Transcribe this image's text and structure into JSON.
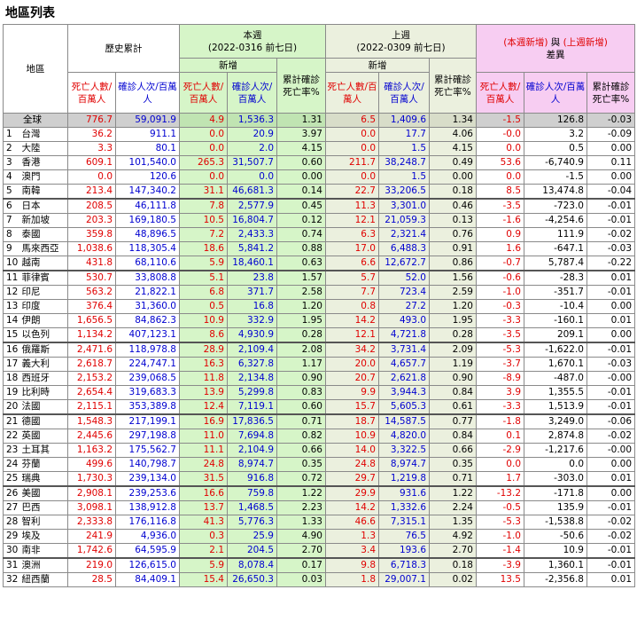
{
  "title": "地區列表",
  "headers": {
    "region": "地區",
    "history": "歷史累計",
    "this_week": "本週",
    "this_week_range": "(2022-0316 前七日)",
    "last_week": "上週",
    "last_week_range": "(2022-0309 前七日)",
    "diff_part1": "(本週新增)",
    "diff_part2": " 與 ",
    "diff_part3": "(上週新增)",
    "diff_title": "差異",
    "new": "新增",
    "deaths": "死亡人數/百萬人",
    "cases": "確診人次/百萬人",
    "cfr": "累計確診死亡率%"
  },
  "global": {
    "name": "全球",
    "v": [
      "776.7",
      "59,091.9",
      "4.9",
      "1,536.3",
      "1.31",
      "6.5",
      "1,409.6",
      "1.34",
      "-1.5",
      "126.8",
      "-0.03"
    ]
  },
  "rows": [
    {
      "rank": "1",
      "name": "台灣",
      "v": [
        "36.2",
        "911.1",
        "0.0",
        "20.9",
        "3.97",
        "0.0",
        "17.7",
        "4.06",
        "-0.0",
        "3.2",
        "-0.09"
      ]
    },
    {
      "rank": "2",
      "name": "大陸",
      "v": [
        "3.3",
        "80.1",
        "0.0",
        "2.0",
        "4.15",
        "0.0",
        "1.5",
        "4.15",
        "0.0",
        "0.5",
        "0.00"
      ]
    },
    {
      "rank": "3",
      "name": "香港",
      "v": [
        "609.1",
        "101,540.0",
        "265.3",
        "31,507.7",
        "0.60",
        "211.7",
        "38,248.7",
        "0.49",
        "53.6",
        "-6,740.9",
        "0.11"
      ]
    },
    {
      "rank": "4",
      "name": "澳門",
      "v": [
        "0.0",
        "120.6",
        "0.0",
        "0.0",
        "0.00",
        "0.0",
        "1.5",
        "0.00",
        "0.0",
        "-1.5",
        "0.00"
      ]
    },
    {
      "rank": "5",
      "name": "南韓",
      "v": [
        "213.4",
        "147,340.2",
        "31.1",
        "46,681.3",
        "0.14",
        "22.7",
        "33,206.5",
        "0.18",
        "8.5",
        "13,474.8",
        "-0.04"
      ]
    },
    {
      "rank": "6",
      "name": "日本",
      "v": [
        "208.5",
        "46,111.8",
        "7.8",
        "2,577.9",
        "0.45",
        "11.3",
        "3,301.0",
        "0.46",
        "-3.5",
        "-723.0",
        "-0.01"
      ]
    },
    {
      "rank": "7",
      "name": "新加坡",
      "v": [
        "203.3",
        "169,180.5",
        "10.5",
        "16,804.7",
        "0.12",
        "12.1",
        "21,059.3",
        "0.13",
        "-1.6",
        "-4,254.6",
        "-0.01"
      ]
    },
    {
      "rank": "8",
      "name": "泰國",
      "v": [
        "359.8",
        "48,896.5",
        "7.2",
        "2,433.3",
        "0.74",
        "6.3",
        "2,321.4",
        "0.76",
        "0.9",
        "111.9",
        "-0.02"
      ]
    },
    {
      "rank": "9",
      "name": "馬來西亞",
      "v": [
        "1,038.6",
        "118,305.4",
        "18.6",
        "5,841.2",
        "0.88",
        "17.0",
        "6,488.3",
        "0.91",
        "1.6",
        "-647.1",
        "-0.03"
      ]
    },
    {
      "rank": "10",
      "name": "越南",
      "v": [
        "431.8",
        "68,110.6",
        "5.9",
        "18,460.1",
        "0.63",
        "6.6",
        "12,672.7",
        "0.86",
        "-0.7",
        "5,787.4",
        "-0.22"
      ]
    },
    {
      "rank": "11",
      "name": "菲律賓",
      "v": [
        "530.7",
        "33,808.8",
        "5.1",
        "23.8",
        "1.57",
        "5.7",
        "52.0",
        "1.56",
        "-0.6",
        "-28.3",
        "0.01"
      ]
    },
    {
      "rank": "12",
      "name": "印尼",
      "v": [
        "563.2",
        "21,822.1",
        "6.8",
        "371.7",
        "2.58",
        "7.7",
        "723.4",
        "2.59",
        "-1.0",
        "-351.7",
        "-0.01"
      ]
    },
    {
      "rank": "13",
      "name": "印度",
      "v": [
        "376.4",
        "31,360.0",
        "0.5",
        "16.8",
        "1.20",
        "0.8",
        "27.2",
        "1.20",
        "-0.3",
        "-10.4",
        "0.00"
      ]
    },
    {
      "rank": "14",
      "name": "伊朗",
      "v": [
        "1,656.5",
        "84,862.3",
        "10.9",
        "332.9",
        "1.95",
        "14.2",
        "493.0",
        "1.95",
        "-3.3",
        "-160.1",
        "0.01"
      ]
    },
    {
      "rank": "15",
      "name": "以色列",
      "v": [
        "1,134.2",
        "407,123.1",
        "8.6",
        "4,930.9",
        "0.28",
        "12.1",
        "4,721.8",
        "0.28",
        "-3.5",
        "209.1",
        "0.00"
      ]
    },
    {
      "rank": "16",
      "name": "俄羅斯",
      "v": [
        "2,471.6",
        "118,978.8",
        "28.9",
        "2,109.4",
        "2.08",
        "34.2",
        "3,731.4",
        "2.09",
        "-5.3",
        "-1,622.0",
        "-0.01"
      ]
    },
    {
      "rank": "17",
      "name": "義大利",
      "v": [
        "2,618.7",
        "224,747.1",
        "16.3",
        "6,327.8",
        "1.17",
        "20.0",
        "4,657.7",
        "1.19",
        "-3.7",
        "1,670.1",
        "-0.03"
      ]
    },
    {
      "rank": "18",
      "name": "西班牙",
      "v": [
        "2,153.2",
        "239,068.5",
        "11.8",
        "2,134.8",
        "0.90",
        "20.7",
        "2,621.8",
        "0.90",
        "-8.9",
        "-487.0",
        "-0.00"
      ]
    },
    {
      "rank": "19",
      "name": "比利時",
      "v": [
        "2,654.4",
        "319,683.3",
        "13.9",
        "5,299.8",
        "0.83",
        "9.9",
        "3,944.3",
        "0.84",
        "3.9",
        "1,355.5",
        "-0.01"
      ]
    },
    {
      "rank": "20",
      "name": "法國",
      "v": [
        "2,115.1",
        "353,389.8",
        "12.4",
        "7,119.1",
        "0.60",
        "15.7",
        "5,605.3",
        "0.61",
        "-3.3",
        "1,513.9",
        "-0.01"
      ]
    },
    {
      "rank": "21",
      "name": "德國",
      "v": [
        "1,548.3",
        "217,199.1",
        "16.9",
        "17,836.5",
        "0.71",
        "18.7",
        "14,587.5",
        "0.77",
        "-1.8",
        "3,249.0",
        "-0.06"
      ]
    },
    {
      "rank": "22",
      "name": "英國",
      "v": [
        "2,445.6",
        "297,198.8",
        "11.0",
        "7,694.8",
        "0.82",
        "10.9",
        "4,820.0",
        "0.84",
        "0.1",
        "2,874.8",
        "-0.02"
      ]
    },
    {
      "rank": "23",
      "name": "土耳其",
      "v": [
        "1,163.2",
        "175,562.7",
        "11.1",
        "2,104.9",
        "0.66",
        "14.0",
        "3,322.5",
        "0.66",
        "-2.9",
        "-1,217.6",
        "-0.00"
      ]
    },
    {
      "rank": "24",
      "name": "芬蘭",
      "v": [
        "499.6",
        "140,798.7",
        "24.8",
        "8,974.7",
        "0.35",
        "24.8",
        "8,974.7",
        "0.35",
        "0.0",
        "0.0",
        "0.00"
      ]
    },
    {
      "rank": "25",
      "name": "瑞典",
      "v": [
        "1,730.3",
        "239,134.0",
        "31.5",
        "916.8",
        "0.72",
        "29.7",
        "1,219.8",
        "0.71",
        "1.7",
        "-303.0",
        "0.01"
      ]
    },
    {
      "rank": "26",
      "name": "美國",
      "v": [
        "2,908.1",
        "239,253.6",
        "16.6",
        "759.8",
        "1.22",
        "29.9",
        "931.6",
        "1.22",
        "-13.2",
        "-171.8",
        "0.00"
      ]
    },
    {
      "rank": "27",
      "name": "巴西",
      "v": [
        "3,098.1",
        "138,912.8",
        "13.7",
        "1,468.5",
        "2.23",
        "14.2",
        "1,332.6",
        "2.24",
        "-0.5",
        "135.9",
        "-0.01"
      ]
    },
    {
      "rank": "28",
      "name": "智利",
      "v": [
        "2,333.8",
        "176,116.8",
        "41.3",
        "5,776.3",
        "1.33",
        "46.6",
        "7,315.1",
        "1.35",
        "-5.3",
        "-1,538.8",
        "-0.02"
      ]
    },
    {
      "rank": "29",
      "name": "埃及",
      "v": [
        "241.9",
        "4,936.0",
        "0.3",
        "25.9",
        "4.90",
        "1.3",
        "76.5",
        "4.92",
        "-1.0",
        "-50.6",
        "-0.02"
      ]
    },
    {
      "rank": "30",
      "name": "南非",
      "v": [
        "1,742.6",
        "64,595.9",
        "2.1",
        "204.5",
        "2.70",
        "3.4",
        "193.6",
        "2.70",
        "-1.4",
        "10.9",
        "-0.01"
      ]
    },
    {
      "rank": "31",
      "name": "澳洲",
      "v": [
        "219.0",
        "126,615.0",
        "5.9",
        "8,078.4",
        "0.17",
        "9.8",
        "6,718.3",
        "0.18",
        "-3.9",
        "1,360.1",
        "-0.01"
      ]
    },
    {
      "rank": "32",
      "name": "紐西蘭",
      "v": [
        "28.5",
        "84,409.1",
        "15.4",
        "26,650.3",
        "0.03",
        "1.8",
        "29,007.1",
        "0.02",
        "13.5",
        "-2,356.8",
        "0.01"
      ]
    }
  ],
  "colors": {
    "death": "#e00000",
    "cases": "#0000d0",
    "this_week_bg": "#d6f5c8",
    "last_week_bg": "#ebf0de",
    "diff_bg": "#f7cdf2"
  }
}
